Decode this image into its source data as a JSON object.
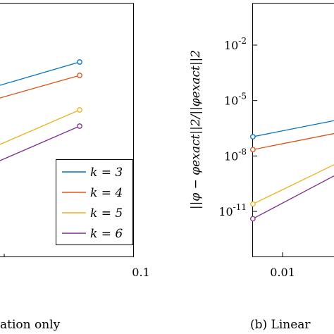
{
  "chart_data": [
    {
      "type": "line",
      "caption": "ation only",
      "x_scale": "log",
      "y_scale": "log",
      "x_ticks": [
        "0.1"
      ],
      "legend": {
        "placement": "bottom-right",
        "entries": [
          "k = 3",
          "k = 4",
          "k = 5",
          "k = 6"
        ]
      },
      "series": [
        {
          "name": "k = 3",
          "color": "#0072BD",
          "x_end": 0.05
        },
        {
          "name": "k = 4",
          "color": "#D95319",
          "x_end": 0.05
        },
        {
          "name": "k = 5",
          "color": "#EDB120",
          "x_end": 0.05
        },
        {
          "name": "k = 6",
          "color": "#7E2F8E",
          "x_end": 0.05
        }
      ]
    },
    {
      "type": "line",
      "caption": "(b) Linear",
      "ylabel": "||φ − φexact||2/||φexact||2",
      "x_scale": "log",
      "y_scale": "log",
      "x_ticks": [
        "0.01"
      ],
      "y_ticks": [
        {
          "value": 1e-11,
          "label": "10-11"
        },
        {
          "value": 1e-08,
          "label": "10-8"
        },
        {
          "value": 1e-05,
          "label": "10-5"
        },
        {
          "value": 0.01,
          "label": "10-2"
        }
      ],
      "series": [
        {
          "name": "k = 3",
          "color": "#0072BD",
          "x_start": 0.006,
          "y_start": 1.1e-07
        },
        {
          "name": "k = 4",
          "color": "#D95319",
          "x_start": 0.006,
          "y_start": 2.2e-08
        },
        {
          "name": "k = 5",
          "color": "#EDB120",
          "x_start": 0.006,
          "y_start": 2.5e-11
        },
        {
          "name": "k = 6",
          "color": "#7E2F8E",
          "x_start": 0.006,
          "y_start": 4e-12
        }
      ]
    }
  ]
}
